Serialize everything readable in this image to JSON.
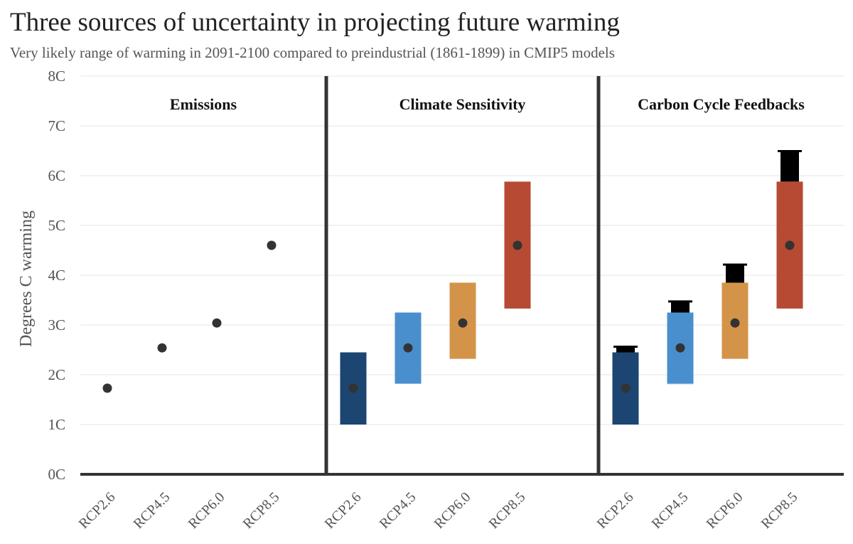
{
  "chart_data": {
    "type": "range-dot",
    "title": "Three sources of uncertainty in projecting future warming",
    "subtitle": "Very likely range of warming in 2091-2100 compared to preindustrial (1861-1899) in CMIP5 models",
    "ylabel": "Degrees C warming",
    "ylim": [
      0,
      8
    ],
    "yticks": [
      "0C",
      "1C",
      "2C",
      "3C",
      "4C",
      "5C",
      "6C",
      "7C",
      "8C"
    ],
    "grid": true,
    "categories": [
      "RCP2.6",
      "RCP4.5",
      "RCP6.0",
      "RCP8.5"
    ],
    "colors": [
      "#1c4571",
      "#4a8fcd",
      "#d3944a",
      "#b74a33"
    ],
    "feedback_color": "#000000",
    "dot_color": "#333333",
    "panels": [
      {
        "title": "Emissions",
        "series": [
          {
            "category": "RCP2.6",
            "median": 1.73
          },
          {
            "category": "RCP4.5",
            "median": 2.54
          },
          {
            "category": "RCP6.0",
            "median": 3.04
          },
          {
            "category": "RCP8.5",
            "median": 4.6
          }
        ]
      },
      {
        "title": "Climate Sensitivity",
        "series": [
          {
            "category": "RCP2.6",
            "median": 1.73,
            "low": 1.0,
            "high": 2.45
          },
          {
            "category": "RCP4.5",
            "median": 2.54,
            "low": 1.82,
            "high": 3.25
          },
          {
            "category": "RCP6.0",
            "median": 3.04,
            "low": 2.32,
            "high": 3.85
          },
          {
            "category": "RCP8.5",
            "median": 4.6,
            "low": 3.33,
            "high": 5.88
          }
        ]
      },
      {
        "title": "Carbon Cycle Feedbacks",
        "series": [
          {
            "category": "RCP2.6",
            "median": 1.73,
            "low": 1.0,
            "high": 2.45,
            "feedback_high": 2.57,
            "feedback_low": 1.0
          },
          {
            "category": "RCP4.5",
            "median": 2.54,
            "low": 1.82,
            "high": 3.25,
            "feedback_high": 3.48,
            "feedback_low": 1.8
          },
          {
            "category": "RCP6.0",
            "median": 3.04,
            "low": 2.32,
            "high": 3.85,
            "feedback_high": 4.22,
            "feedback_low": 2.32
          },
          {
            "category": "RCP8.5",
            "median": 4.6,
            "low": 3.33,
            "high": 5.88,
            "feedback_high": 6.5,
            "feedback_low": 3.33
          }
        ]
      }
    ]
  }
}
